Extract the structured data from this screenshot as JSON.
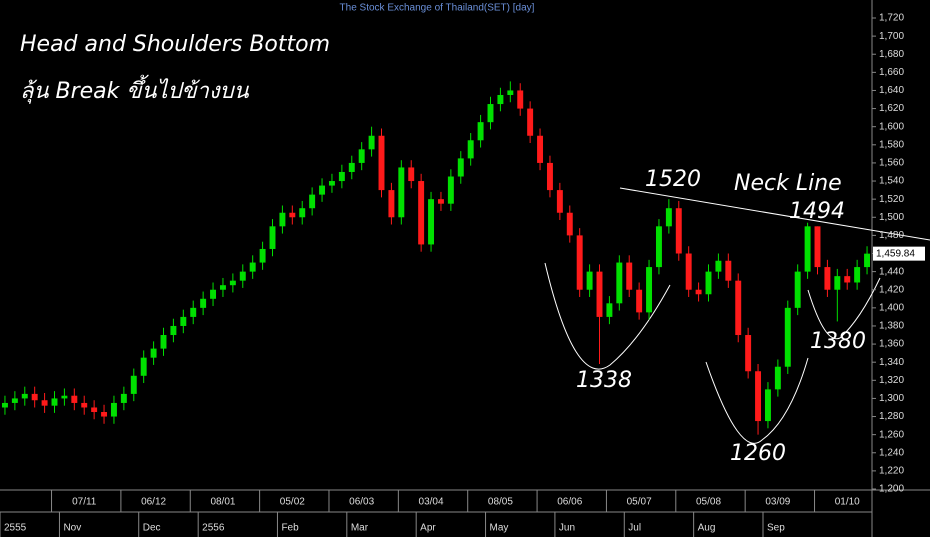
{
  "chart_data": {
    "type": "candlestick",
    "title": "The Stock Exchange of Thailand(SET) [day]",
    "annotations": [
      "Head and Shoulders Bottom",
      "ลุ้น Break ขึ้นไปข้างบน",
      "1520",
      "Neck Line",
      "1494",
      "1338",
      "1260",
      "1380"
    ],
    "open": [
      1290,
      1295,
      1300,
      1305,
      1298,
      1292,
      1300,
      1303,
      1295,
      1290,
      1285,
      1280,
      1295,
      1305,
      1325,
      1345,
      1355,
      1370,
      1380,
      1390,
      1400,
      1410,
      1420,
      1425,
      1430,
      1440,
      1450,
      1465,
      1490,
      1505,
      1500,
      1510,
      1525,
      1535,
      1540,
      1550,
      1560,
      1575,
      1590,
      1530,
      1500,
      1555,
      1540,
      1470,
      1520,
      1515,
      1545,
      1565,
      1585,
      1605,
      1625,
      1635,
      1640,
      1620,
      1590,
      1560,
      1530,
      1505,
      1480,
      1420,
      1440,
      1390,
      1405,
      1450,
      1420,
      1395,
      1445,
      1490,
      1510,
      1460,
      1420,
      1415,
      1440,
      1452,
      1430,
      1370,
      1330,
      1275,
      1310,
      1335,
      1400,
      1440,
      1490,
      1445,
      1420,
      1435,
      1428,
      1445
    ],
    "high": [
      1303,
      1308,
      1313,
      1313,
      1306,
      1308,
      1311,
      1311,
      1303,
      1298,
      1293,
      1303,
      1313,
      1333,
      1353,
      1363,
      1378,
      1388,
      1398,
      1408,
      1418,
      1428,
      1433,
      1438,
      1448,
      1458,
      1473,
      1498,
      1513,
      1513,
      1518,
      1533,
      1543,
      1548,
      1558,
      1568,
      1583,
      1600,
      1598,
      1538,
      1563,
      1563,
      1548,
      1528,
      1528,
      1553,
      1573,
      1593,
      1613,
      1633,
      1643,
      1650,
      1648,
      1628,
      1598,
      1568,
      1538,
      1513,
      1488,
      1448,
      1448,
      1413,
      1458,
      1458,
      1428,
      1453,
      1498,
      1520,
      1518,
      1468,
      1428,
      1448,
      1460,
      1460,
      1438,
      1378,
      1338,
      1318,
      1343,
      1408,
      1448,
      1494,
      1490,
      1453,
      1443,
      1443,
      1453,
      1468
    ],
    "low": [
      1282,
      1287,
      1292,
      1290,
      1284,
      1284,
      1292,
      1287,
      1282,
      1277,
      1272,
      1272,
      1287,
      1297,
      1317,
      1337,
      1347,
      1362,
      1372,
      1382,
      1392,
      1402,
      1412,
      1417,
      1422,
      1432,
      1442,
      1457,
      1482,
      1492,
      1492,
      1502,
      1517,
      1527,
      1532,
      1542,
      1552,
      1567,
      1522,
      1492,
      1492,
      1532,
      1462,
      1462,
      1507,
      1507,
      1537,
      1557,
      1577,
      1597,
      1617,
      1627,
      1612,
      1582,
      1552,
      1522,
      1497,
      1472,
      1412,
      1412,
      1338,
      1382,
      1397,
      1412,
      1387,
      1387,
      1437,
      1482,
      1452,
      1412,
      1407,
      1407,
      1432,
      1422,
      1362,
      1322,
      1260,
      1267,
      1302,
      1327,
      1392,
      1432,
      1437,
      1412,
      1385,
      1420,
      1420,
      1437
    ],
    "close": [
      1295,
      1300,
      1305,
      1298,
      1292,
      1300,
      1303,
      1295,
      1290,
      1285,
      1280,
      1295,
      1305,
      1325,
      1345,
      1355,
      1370,
      1380,
      1390,
      1400,
      1410,
      1420,
      1425,
      1430,
      1440,
      1450,
      1465,
      1490,
      1505,
      1500,
      1510,
      1525,
      1535,
      1540,
      1550,
      1560,
      1575,
      1590,
      1530,
      1500,
      1555,
      1540,
      1470,
      1520,
      1515,
      1545,
      1565,
      1585,
      1605,
      1625,
      1635,
      1640,
      1620,
      1590,
      1560,
      1530,
      1505,
      1480,
      1420,
      1440,
      1390,
      1405,
      1450,
      1420,
      1395,
      1445,
      1490,
      1510,
      1460,
      1420,
      1415,
      1440,
      1452,
      1430,
      1370,
      1330,
      1275,
      1310,
      1335,
      1400,
      1440,
      1490,
      1445,
      1420,
      1435,
      1428,
      1445,
      1459.84
    ],
    "last_label": "1,459.84",
    "up_color": "#00e000",
    "down_color": "#ff1a1a",
    "ylim": [
      1200,
      1720
    ],
    "yticks": [
      {
        "value": 1200,
        "label": "1,200"
      },
      {
        "value": 1220,
        "label": "1,220"
      },
      {
        "value": 1240,
        "label": "1,240"
      },
      {
        "value": 1260,
        "label": "1,260"
      },
      {
        "value": 1280,
        "label": "1,280"
      },
      {
        "value": 1300,
        "label": "1,300"
      },
      {
        "value": 1320,
        "label": "1,320"
      },
      {
        "value": 1340,
        "label": "1,340"
      },
      {
        "value": 1360,
        "label": "1,360"
      },
      {
        "value": 1380,
        "label": "1,380"
      },
      {
        "value": 1400,
        "label": "1,400"
      },
      {
        "value": 1420,
        "label": "1,420"
      },
      {
        "value": 1440,
        "label": "1,440"
      },
      {
        "value": 1460,
        "label": "1,460"
      },
      {
        "value": 1480,
        "label": "1,480"
      },
      {
        "value": 1500,
        "label": "1,500"
      },
      {
        "value": 1520,
        "label": "1,520"
      },
      {
        "value": 1540,
        "label": "1,540"
      },
      {
        "value": 1560,
        "label": "1,560"
      },
      {
        "value": 1580,
        "label": "1,580"
      },
      {
        "value": 1600,
        "label": "1,600"
      },
      {
        "value": 1620,
        "label": "1,620"
      },
      {
        "value": 1640,
        "label": "1,640"
      },
      {
        "value": 1660,
        "label": "1,660"
      },
      {
        "value": 1680,
        "label": "1,680"
      },
      {
        "value": 1700,
        "label": "1,700"
      },
      {
        "value": 1720,
        "label": "1,720"
      }
    ],
    "xticks": [
      {
        "value": 8,
        "label": "07/11"
      },
      {
        "value": 15,
        "label": "06/12"
      },
      {
        "value": 22,
        "label": "08/01"
      },
      {
        "value": 29,
        "label": "05/02"
      },
      {
        "value": 36,
        "label": "06/03"
      },
      {
        "value": 43,
        "label": "03/04"
      },
      {
        "value": 50,
        "label": "08/05"
      },
      {
        "value": 57,
        "label": "06/06"
      },
      {
        "value": 64,
        "label": "05/07"
      },
      {
        "value": 71,
        "label": "05/08"
      },
      {
        "value": 78,
        "label": "03/09"
      },
      {
        "value": 85,
        "label": "01/10"
      }
    ],
    "xticks2": [
      {
        "value": 0,
        "label": "2555"
      },
      {
        "value": 6,
        "label": "Nov"
      },
      {
        "value": 14,
        "label": "Dec"
      },
      {
        "value": 20,
        "label": "2556"
      },
      {
        "value": 28,
        "label": "Feb"
      },
      {
        "value": 35,
        "label": "Mar"
      },
      {
        "value": 42,
        "label": "Apr"
      },
      {
        "value": 49,
        "label": "May"
      },
      {
        "value": 56,
        "label": "Jun"
      },
      {
        "value": 63,
        "label": "Jul"
      },
      {
        "value": 70,
        "label": "Aug"
      },
      {
        "value": 77,
        "label": "Sep"
      }
    ]
  }
}
